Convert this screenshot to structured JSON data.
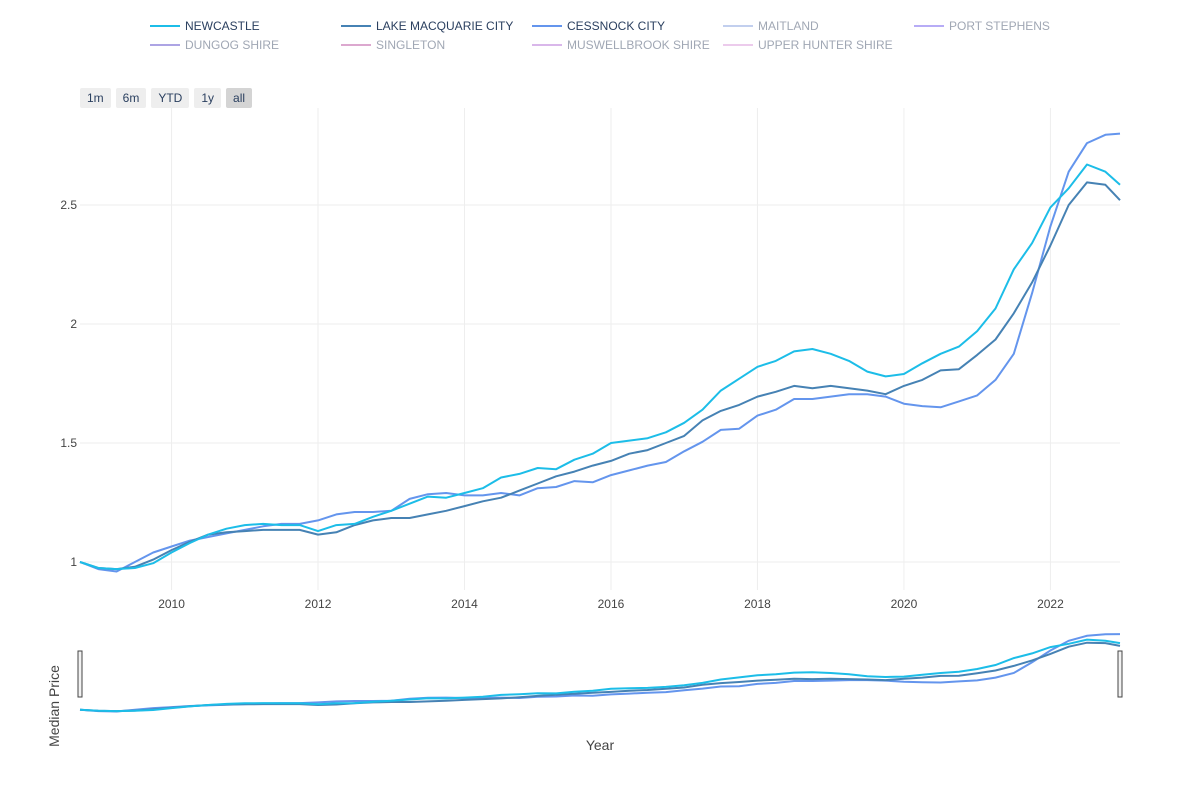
{
  "legend": [
    {
      "name": "NEWCASTLE",
      "color": "#1cbde8",
      "state": "on"
    },
    {
      "name": "LAKE MACQUARIE CITY",
      "color": "#4682b4",
      "state": "on"
    },
    {
      "name": "CESSNOCK CITY",
      "color": "#6495ed",
      "state": "on"
    },
    {
      "name": "MAITLAND",
      "color": "#8fa8e0",
      "state": "off"
    },
    {
      "name": "PORT STEPHENS",
      "color": "#7b68ee",
      "state": "off"
    },
    {
      "name": "DUNGOG SHIRE",
      "color": "#6a5acd",
      "state": "off"
    },
    {
      "name": "SINGLETON",
      "color": "#c060a8",
      "state": "off"
    },
    {
      "name": "MUSWELLBROOK SHIRE",
      "color": "#ba7cd8",
      "state": "off"
    },
    {
      "name": "UPPER HUNTER SHIRE",
      "color": "#dda0dd",
      "state": "off"
    }
  ],
  "range_buttons": [
    {
      "label": "1m",
      "active": false
    },
    {
      "label": "6m",
      "active": false
    },
    {
      "label": "YTD",
      "active": false
    },
    {
      "label": "1y",
      "active": false
    },
    {
      "label": "all",
      "active": true
    }
  ],
  "axes": {
    "ylabel": "Median Price",
    "xlabel": "Year",
    "yticks": [
      "1",
      "1.5",
      "2",
      "2.5"
    ],
    "xticks": [
      "2010",
      "2012",
      "2014",
      "2016",
      "2018",
      "2020",
      "2022"
    ]
  },
  "chart_data": {
    "type": "line",
    "xlabel": "Year",
    "ylabel": "Median Price",
    "xlim": [
      2008.75,
      2022.95
    ],
    "ylim": [
      0.9,
      2.85
    ],
    "grid": true,
    "legend_position": "top",
    "rangeslider": true,
    "x": [
      2008.75,
      2009.0,
      2009.25,
      2009.5,
      2009.75,
      2010.0,
      2010.25,
      2010.5,
      2010.75,
      2011.0,
      2011.25,
      2011.5,
      2011.75,
      2012.0,
      2012.25,
      2012.5,
      2012.75,
      2013.0,
      2013.25,
      2013.5,
      2013.75,
      2014.0,
      2014.25,
      2014.5,
      2014.75,
      2015.0,
      2015.25,
      2015.5,
      2015.75,
      2016.0,
      2016.25,
      2016.5,
      2016.75,
      2017.0,
      2017.25,
      2017.5,
      2017.75,
      2018.0,
      2018.25,
      2018.5,
      2018.75,
      2019.0,
      2019.25,
      2019.5,
      2019.75,
      2020.0,
      2020.25,
      2020.5,
      2020.75,
      2021.0,
      2021.25,
      2021.5,
      2021.75,
      2022.0,
      2022.25,
      2022.5,
      2022.75,
      2022.95
    ],
    "series": [
      {
        "name": "NEWCASTLE",
        "color": "#1cbde8",
        "values": [
          1.0,
          0.975,
          0.97,
          0.975,
          0.995,
          1.04,
          1.08,
          1.115,
          1.14,
          1.155,
          1.16,
          1.155,
          1.155,
          1.13,
          1.155,
          1.16,
          1.19,
          1.215,
          1.245,
          1.275,
          1.27,
          1.29,
          1.31,
          1.355,
          1.37,
          1.395,
          1.39,
          1.43,
          1.455,
          1.5,
          1.51,
          1.52,
          1.545,
          1.585,
          1.64,
          1.72,
          1.77,
          1.82,
          1.845,
          1.885,
          1.895,
          1.875,
          1.845,
          1.8,
          1.78,
          1.79,
          1.835,
          1.875,
          1.905,
          1.97,
          2.065,
          2.23,
          2.34,
          2.49,
          2.57,
          2.67,
          2.64,
          2.585
        ]
      },
      {
        "name": "LAKE MACQUARIE CITY",
        "color": "#4682b4",
        "values": [
          1.0,
          0.975,
          0.97,
          0.98,
          1.01,
          1.05,
          1.085,
          1.115,
          1.125,
          1.13,
          1.135,
          1.135,
          1.135,
          1.115,
          1.125,
          1.155,
          1.175,
          1.185,
          1.185,
          1.2,
          1.215,
          1.235,
          1.255,
          1.27,
          1.3,
          1.33,
          1.36,
          1.38,
          1.405,
          1.425,
          1.455,
          1.47,
          1.5,
          1.53,
          1.595,
          1.635,
          1.66,
          1.695,
          1.715,
          1.74,
          1.73,
          1.74,
          1.73,
          1.72,
          1.705,
          1.74,
          1.765,
          1.805,
          1.81,
          1.87,
          1.935,
          2.045,
          2.175,
          2.33,
          2.5,
          2.595,
          2.585,
          2.52
        ]
      },
      {
        "name": "CESSNOCK CITY",
        "color": "#6495ed",
        "values": [
          1.0,
          0.97,
          0.96,
          1.0,
          1.04,
          1.065,
          1.09,
          1.105,
          1.12,
          1.135,
          1.15,
          1.16,
          1.16,
          1.175,
          1.2,
          1.21,
          1.21,
          1.215,
          1.265,
          1.285,
          1.29,
          1.28,
          1.28,
          1.29,
          1.28,
          1.31,
          1.315,
          1.34,
          1.335,
          1.365,
          1.385,
          1.405,
          1.42,
          1.465,
          1.505,
          1.555,
          1.56,
          1.615,
          1.64,
          1.685,
          1.685,
          1.695,
          1.705,
          1.705,
          1.695,
          1.665,
          1.655,
          1.65,
          1.675,
          1.7,
          1.765,
          1.875,
          2.13,
          2.41,
          2.64,
          2.76,
          2.795,
          2.8
        ]
      }
    ]
  }
}
